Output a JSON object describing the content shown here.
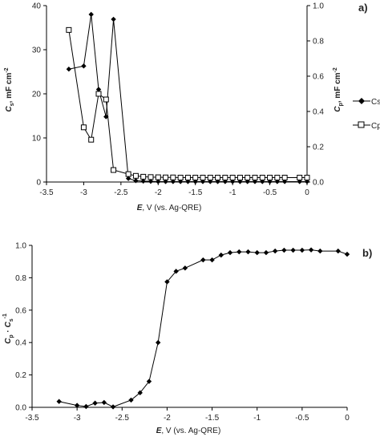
{
  "chart_data": [
    {
      "type": "line",
      "panel_label": "a)",
      "xlabel_var": "E",
      "xlabel_rest": ", V (vs. Ag-QRE)",
      "ylabel_left_var": "C",
      "ylabel_left_sub": "s",
      "ylabel_left_rest": ", mF cm",
      "ylabel_left_sup": "-2",
      "ylabel_right_var": "C",
      "ylabel_right_sub": "p",
      "ylabel_right_rest": ", mF cm",
      "ylabel_right_sup": "-2",
      "xlim": [
        -3.5,
        0
      ],
      "xticks": [
        -3.5,
        -3,
        -2.5,
        -2,
        -1.5,
        -1,
        -0.5,
        0
      ],
      "xtick_labels": [
        "-3.5",
        "-3",
        "-2.5",
        "-2",
        "-1.5",
        "-1",
        "-0.5",
        "0"
      ],
      "ylim_left": [
        0,
        40
      ],
      "yticks_left": [
        0,
        10,
        20,
        30,
        40
      ],
      "ytick_labels_left": [
        "0",
        "10",
        "20",
        "30",
        "40"
      ],
      "ylim_right": [
        0,
        1.0
      ],
      "yticks_right": [
        0,
        0.2,
        0.4,
        0.6,
        0.8,
        1.0
      ],
      "ytick_labels_right": [
        "0.0",
        "0.2",
        "0.4",
        "0.6",
        "0.8",
        "1.0"
      ],
      "grid": false,
      "legend_position": "right",
      "series": [
        {
          "name": "Cs",
          "axis": "left",
          "marker": "diamond-filled",
          "color": "#000000",
          "x": [
            -3.2,
            -3.0,
            -2.9,
            -2.8,
            -2.7,
            -2.6,
            -2.4,
            -2.3,
            -2.2,
            -2.1,
            -2.0,
            -1.9,
            -1.8,
            -1.7,
            -1.6,
            -1.5,
            -1.4,
            -1.3,
            -1.2,
            -1.1,
            -1.0,
            -0.9,
            -0.8,
            -0.7,
            -0.6,
            -0.5,
            -0.4,
            -0.3,
            -0.1,
            0.0
          ],
          "y": [
            25.6,
            26.3,
            38.0,
            21.0,
            14.8,
            36.9,
            0.8,
            0.3,
            0.2,
            0.15,
            0.1,
            0.1,
            0.1,
            0.1,
            0.1,
            0.1,
            0.1,
            0.1,
            0.1,
            0.1,
            0.1,
            0.1,
            0.1,
            0.1,
            0.1,
            0.1,
            0.1,
            0.1,
            0.1,
            0.1
          ]
        },
        {
          "name": "Cp",
          "legend_label": "Cp",
          "axis": "right",
          "marker": "square-open",
          "color": "#000000",
          "x": [
            -3.2,
            -3.0,
            -2.9,
            -2.8,
            -2.7,
            -2.6,
            -2.4,
            -2.3,
            -2.2,
            -2.1,
            -2.0,
            -1.9,
            -1.8,
            -1.7,
            -1.6,
            -1.5,
            -1.4,
            -1.3,
            -1.2,
            -1.1,
            -1.0,
            -0.9,
            -0.8,
            -0.7,
            -0.6,
            -0.5,
            -0.4,
            -0.3,
            -0.1,
            0.0
          ],
          "y": [
            0.862,
            0.31,
            0.24,
            0.5,
            0.468,
            0.068,
            0.045,
            0.035,
            0.03,
            0.028,
            0.027,
            0.026,
            0.026,
            0.025,
            0.025,
            0.025,
            0.025,
            0.025,
            0.025,
            0.025,
            0.025,
            0.025,
            0.025,
            0.025,
            0.025,
            0.025,
            0.025,
            0.025,
            0.025,
            0.025
          ]
        }
      ]
    },
    {
      "type": "line",
      "panel_label": "b)",
      "xlabel_var": "E",
      "xlabel_rest": ", V (vs. Ag-QRE)",
      "ylabel_var1": "C",
      "ylabel_sub1": "p",
      "ylabel_mid": " · ",
      "ylabel_var2": "C",
      "ylabel_sub2": "s",
      "ylabel_sup2": "-1",
      "xlim": [
        -3.5,
        0
      ],
      "xticks": [
        -3.5,
        -3,
        -2.5,
        -2,
        -1.5,
        -1,
        -0.5,
        0
      ],
      "xtick_labels": [
        "-3.5",
        "-3",
        "-2.5",
        "-2",
        "-1.5",
        "-1",
        "-0.5",
        "0"
      ],
      "ylim": [
        0,
        1.0
      ],
      "yticks": [
        0,
        0.2,
        0.4,
        0.6,
        0.8,
        1.0
      ],
      "ytick_labels": [
        "0.0",
        "0.2",
        "0.4",
        "0.6",
        "0.8",
        "1.0"
      ],
      "grid": false,
      "series": [
        {
          "marker": "diamond-filled",
          "color": "#000000",
          "x": [
            -3.2,
            -3.0,
            -2.9,
            -2.8,
            -2.7,
            -2.6,
            -2.4,
            -2.3,
            -2.2,
            -2.1,
            -2.0,
            -1.9,
            -1.8,
            -1.6,
            -1.5,
            -1.4,
            -1.3,
            -1.2,
            -1.1,
            -1.0,
            -0.9,
            -0.8,
            -0.7,
            -0.6,
            -0.5,
            -0.4,
            -0.3,
            -0.1,
            0.0
          ],
          "y": [
            0.036,
            0.012,
            0.005,
            0.026,
            0.03,
            0.003,
            0.045,
            0.09,
            0.16,
            0.4,
            0.775,
            0.84,
            0.86,
            0.91,
            0.91,
            0.94,
            0.955,
            0.96,
            0.96,
            0.955,
            0.955,
            0.965,
            0.97,
            0.97,
            0.97,
            0.972,
            0.965,
            0.965,
            0.945
          ]
        }
      ]
    }
  ]
}
